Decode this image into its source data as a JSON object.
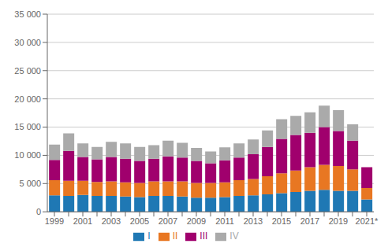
{
  "chart_data": {
    "type": "bar",
    "stacked": true,
    "grid": true,
    "legend": "bottom",
    "categories": [
      "1999",
      null,
      "2001",
      null,
      "2003",
      null,
      "2005",
      null,
      "2007",
      null,
      "2009",
      null,
      "2011",
      null,
      "2013",
      null,
      "2015",
      null,
      "2017",
      null,
      "2019",
      null,
      "2021*"
    ],
    "series": [
      {
        "name": "I",
        "color": "#1F78B4",
        "values": [
          2900,
          2800,
          3000,
          2800,
          2800,
          2700,
          2600,
          2800,
          2800,
          2700,
          2500,
          2500,
          2600,
          2800,
          2900,
          3100,
          3300,
          3500,
          3700,
          3900,
          3700,
          3700,
          2200
        ]
      },
      {
        "name": "II",
        "color": "#E87722",
        "values": [
          2700,
          2700,
          2500,
          2500,
          2600,
          2500,
          2500,
          2600,
          2600,
          2700,
          2600,
          2600,
          2600,
          2800,
          2900,
          3200,
          3500,
          3800,
          4200,
          4400,
          4400,
          3800,
          2000
        ]
      },
      {
        "name": "III",
        "color": "#A0006D",
        "values": [
          3600,
          5300,
          4200,
          4000,
          4300,
          4200,
          3900,
          4000,
          4400,
          4200,
          3900,
          3500,
          3900,
          4000,
          4400,
          5200,
          6100,
          6300,
          6100,
          6700,
          6200,
          5100,
          3700
        ]
      },
      {
        "name": "IV",
        "color": "#AAAAAA",
        "values": [
          2700,
          3100,
          2400,
          2200,
          2700,
          2700,
          2500,
          2400,
          2800,
          2600,
          2300,
          2100,
          2300,
          2500,
          2600,
          2900,
          3500,
          3400,
          3600,
          3800,
          3700,
          2900,
          0
        ]
      }
    ],
    "ylim": [
      0,
      35000
    ],
    "yticks": [
      0,
      {
        "value": 5000,
        "label": "5 000"
      },
      {
        "value": 10000,
        "label": "10 000"
      },
      {
        "value": 15000,
        "label": "15 000"
      },
      {
        "value": 20000,
        "label": "20 000"
      },
      {
        "value": 25000,
        "label": "25 000"
      },
      {
        "value": 30000,
        "label": "30 000"
      },
      {
        "value": 35000,
        "label": "35 000"
      }
    ]
  }
}
